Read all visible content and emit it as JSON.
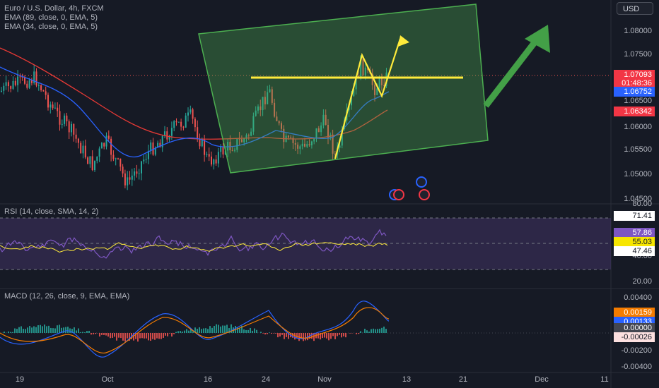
{
  "header": {
    "symbol": "Euro / U.S. Dollar, 4h, FXCM",
    "ema1": "EMA (89, close, 0, EMA, 5)",
    "ema2": "EMA (34, close, 0, EMA, 5)",
    "currency": "USD"
  },
  "price_axis": {
    "ticks": [
      "1.08000",
      "1.07500",
      "1.07000",
      "1.06500",
      "1.06000",
      "1.05500",
      "1.05000",
      "1.04500"
    ],
    "badges": [
      {
        "text": "1.07093",
        "bg": "#f23645",
        "fg": "#ffffff"
      },
      {
        "text": "01:48:36",
        "bg": "#f23645",
        "fg": "#ffffff"
      },
      {
        "text": "1.06752",
        "bg": "#2962ff",
        "fg": "#ffffff"
      },
      {
        "text": "1.06342",
        "bg": "#f23645",
        "fg": "#ffffff"
      }
    ]
  },
  "rsi": {
    "label": "RSI (14, close, SMA, 14, 2)",
    "ticks": [
      "80.00",
      "40.00",
      "20.00"
    ],
    "badges": [
      {
        "text": "71.41",
        "bg": "#ffffff",
        "fg": "#131722"
      },
      {
        "text": "57.86",
        "bg": "#7e57c2",
        "fg": "#ffffff"
      },
      {
        "text": "55.03",
        "bg": "#f7e600",
        "fg": "#131722"
      },
      {
        "text": "47.46",
        "bg": "#ffffff",
        "fg": "#131722"
      }
    ]
  },
  "macd": {
    "label": "MACD (12, 26, close, 9, EMA, EMA)",
    "ticks": [
      "0.00400",
      "0.00200",
      "-0.00200",
      "-0.00400"
    ],
    "badges": [
      {
        "text": "0.00159",
        "bg": "#f57c00",
        "fg": "#ffffff"
      },
      {
        "text": "0.00133",
        "bg": "#2962ff",
        "fg": "#ffffff"
      },
      {
        "text": "0.00000",
        "bg": "#434651",
        "fg": "#ffffff"
      },
      {
        "text": "-0.00026",
        "bg": "#fde0e0",
        "fg": "#131722"
      }
    ]
  },
  "time_axis": [
    "19",
    "Oct",
    "16",
    "24",
    "Nov",
    "13",
    "21",
    "Dec",
    "11"
  ],
  "colors": {
    "up": "#26a69a",
    "down": "#ef5350",
    "ema89": "#e53935",
    "ema34": "#2962ff",
    "channel": "#4caf50",
    "yellow": "#ffeb3b",
    "rsi": "#7e57c2",
    "macd_signal": "#f57c00"
  }
}
